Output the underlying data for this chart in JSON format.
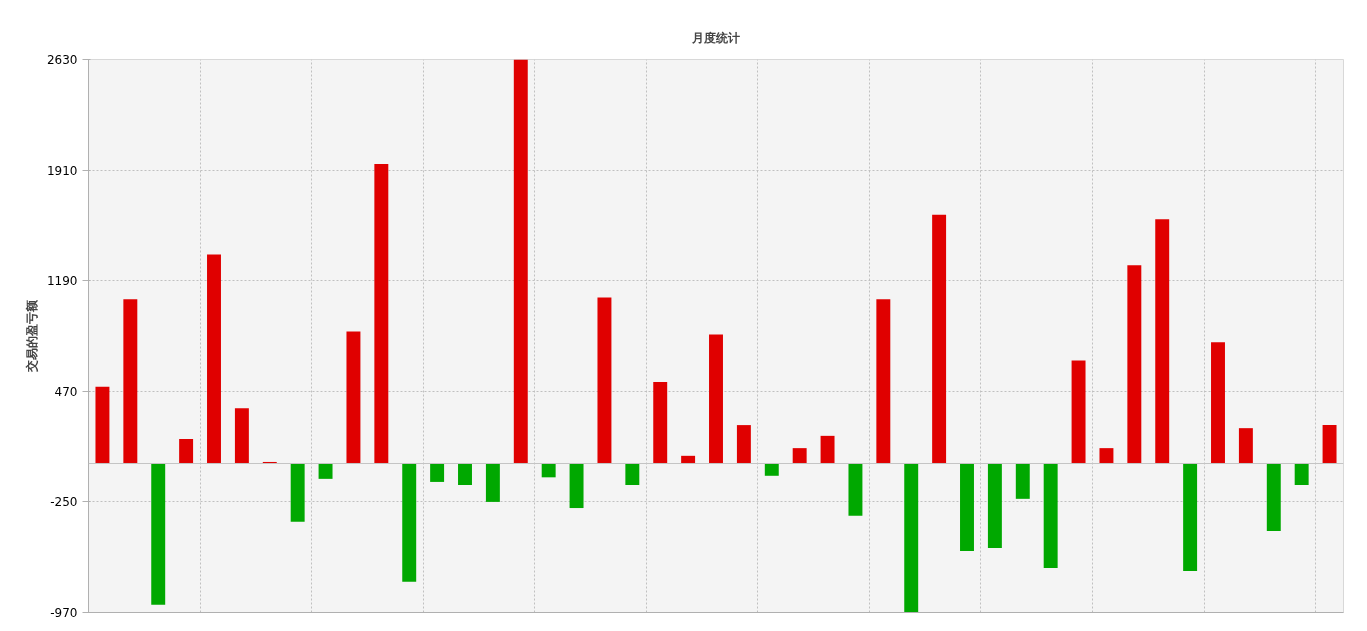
{
  "chart_data": {
    "type": "bar",
    "title": "月度统计",
    "ylabel": "交易的盈亏额",
    "categories": [
      null,
      null,
      null,
      null,
      null,
      null,
      null,
      null,
      null,
      null,
      null,
      null,
      null,
      null,
      null,
      null,
      null,
      null,
      null,
      null,
      null,
      null,
      null,
      null,
      null,
      null,
      null,
      null,
      null,
      null,
      null,
      null,
      null,
      null,
      null,
      null,
      null,
      null,
      null,
      null,
      null,
      null,
      null,
      null,
      null
    ],
    "values": [
      500,
      1070,
      -920,
      160,
      1360,
      360,
      10,
      -380,
      -100,
      860,
      1950,
      -770,
      -120,
      -140,
      -250,
      2630,
      -90,
      -290,
      1080,
      -140,
      530,
      50,
      840,
      250,
      -80,
      100,
      180,
      -340,
      1070,
      -970,
      1620,
      -570,
      -550,
      -230,
      -680,
      670,
      100,
      1290,
      1590,
      -700,
      790,
      230,
      -440,
      -140,
      250
    ],
    "colors": [
      "#e00000",
      "#e00000",
      "#00a800",
      "#e00000",
      "#e00000",
      "#e00000",
      "#e00000",
      "#00a800",
      "#00a800",
      "#e00000",
      "#e00000",
      "#00a800",
      "#00a800",
      "#00a800",
      "#00a800",
      "#e00000",
      "#00a800",
      "#00a800",
      "#e00000",
      "#00a800",
      "#e00000",
      "#e00000",
      "#e00000",
      "#e00000",
      "#00a800",
      "#e00000",
      "#e00000",
      "#00a800",
      "#e00000",
      "#00a800",
      "#e00000",
      "#00a800",
      "#00a800",
      "#00a800",
      "#00a800",
      "#e00000",
      "#e00000",
      "#e00000",
      "#e00000",
      "#00a800",
      "#e00000",
      "#e00000",
      "#00a800",
      "#00a800",
      "#e00000"
    ],
    "ylim": [
      -970,
      2630
    ],
    "yticks": [
      -970,
      -250,
      470,
      1190,
      1910,
      2630
    ],
    "grid": true,
    "tick_labels": "y",
    "ref_lines": [
      {
        "axis": "y",
        "value": 0,
        "color": "#c4c4c4"
      }
    ]
  }
}
